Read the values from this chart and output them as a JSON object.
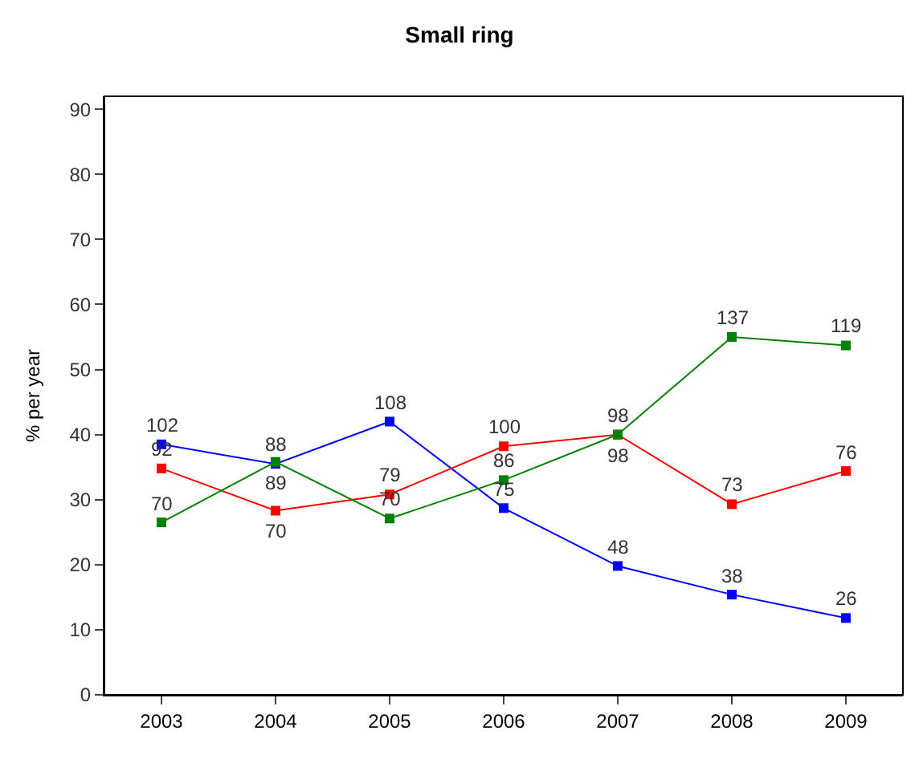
{
  "chart_data": {
    "type": "line",
    "title": "Small ring",
    "ylabel": "% per year",
    "categories": [
      "2003",
      "2004",
      "2005",
      "2006",
      "2007",
      "2008",
      "2009"
    ],
    "series": [
      {
        "color": "#0000ff",
        "values": [
          38.5,
          35.5,
          42,
          28.7,
          19.8,
          15.4,
          11.8
        ]
      },
      {
        "color": "#ff0000",
        "values": [
          34.8,
          28.3,
          30.8,
          38.2,
          40,
          29.3,
          34.4
        ]
      },
      {
        "color": "#008000",
        "values": [
          26.5,
          35.8,
          27.1,
          33,
          40,
          55,
          53.7
        ]
      }
    ],
    "annotations": [
      {
        "text": "102",
        "x": "2003",
        "y": 38.5
      },
      {
        "text": "92",
        "x": "2003",
        "y": 34.8
      },
      {
        "text": "70",
        "x": "2003",
        "y": 26.5
      },
      {
        "text": "88",
        "x": "2004",
        "y": 35.5
      },
      {
        "text": "89",
        "x": "2004",
        "y": 35.8
      },
      {
        "text": "70",
        "x": "2004",
        "y": 28.3
      },
      {
        "text": "108",
        "x": "2005",
        "y": 42
      },
      {
        "text": "79",
        "x": "2005",
        "y": 30.8
      },
      {
        "text": "70",
        "x": "2005",
        "y": 27.1
      },
      {
        "text": "100",
        "x": "2006",
        "y": 38.2
      },
      {
        "text": "86",
        "x": "2006",
        "y": 33
      },
      {
        "text": "75",
        "x": "2006",
        "y": 28.7
      },
      {
        "text": "98",
        "x": "2007",
        "y": 40
      },
      {
        "text": "98",
        "x": "2007",
        "y": 40
      },
      {
        "text": "48",
        "x": "2007",
        "y": 19.8
      },
      {
        "text": "137",
        "x": "2008",
        "y": 55
      },
      {
        "text": "73",
        "x": "2008",
        "y": 29.3
      },
      {
        "text": "38",
        "x": "2008",
        "y": 15.4
      },
      {
        "text": "119",
        "x": "2009",
        "y": 53.7
      },
      {
        "text": "76",
        "x": "2009",
        "y": 34.4
      },
      {
        "text": "26",
        "x": "2009",
        "y": 11.8
      }
    ],
    "ylim": [
      0,
      92
    ],
    "yticks": [
      0,
      10,
      20,
      30,
      40,
      50,
      60,
      70,
      80,
      90
    ],
    "grid": false,
    "legend": false,
    "marker": "square",
    "line_style": "solid"
  }
}
